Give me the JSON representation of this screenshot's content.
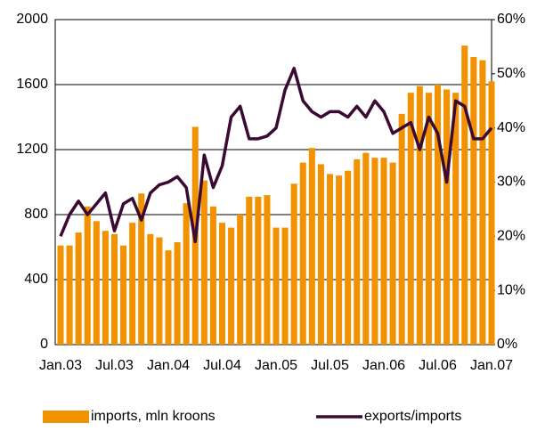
{
  "chart_data": {
    "type": "bar_line",
    "categories": [
      "Jan.03",
      null,
      null,
      null,
      null,
      null,
      "Jul.03",
      null,
      null,
      null,
      null,
      null,
      "Jan.04",
      null,
      null,
      null,
      null,
      null,
      "Jul.04",
      null,
      null,
      null,
      null,
      null,
      "Jan.05",
      null,
      null,
      null,
      null,
      null,
      "Jul.05",
      null,
      null,
      null,
      null,
      null,
      "Jan.06",
      null,
      null,
      null,
      null,
      null,
      "Jul.06",
      null,
      null,
      null,
      null,
      null,
      "Jan.07"
    ],
    "series": [
      {
        "name": "imports, mln kroons",
        "color": "#f39200",
        "kind": "bar",
        "values": [
          610,
          610,
          690,
          850,
          760,
          700,
          680,
          610,
          750,
          930,
          680,
          660,
          580,
          630,
          870,
          1340,
          1010,
          850,
          750,
          720,
          800,
          910,
          910,
          920,
          720,
          720,
          990,
          1120,
          1210,
          1110,
          1050,
          1040,
          1070,
          1140,
          1180,
          1150,
          1150,
          1120,
          1420,
          1550,
          1590,
          1550,
          1600,
          1570,
          1550,
          1840,
          1770,
          1750,
          1620
        ]
      },
      {
        "name": "exports/imports",
        "color": "#3b0a32",
        "kind": "line",
        "axis": "y2",
        "values": [
          20,
          24,
          26.5,
          24,
          26,
          28,
          21,
          26,
          27,
          23,
          28,
          29.5,
          30,
          31,
          29,
          19,
          35,
          29,
          33,
          42,
          44,
          38,
          38,
          38.5,
          40,
          47,
          51,
          45,
          43,
          42,
          43,
          43,
          42,
          44,
          42,
          45,
          43,
          39,
          40,
          41,
          36,
          42,
          39,
          30,
          45,
          44,
          38,
          38,
          40
        ]
      }
    ],
    "ylim": [
      0,
      2000
    ],
    "yticks": [
      0,
      400,
      800,
      1200,
      1600,
      2000
    ],
    "y2lim": [
      0,
      60
    ],
    "y2ticks": [
      {
        "value": 0,
        "label": "0%"
      },
      {
        "value": 10,
        "label": "10%"
      },
      {
        "value": 20,
        "label": "20%"
      },
      {
        "value": 30,
        "label": "30%"
      },
      {
        "value": 40,
        "label": "40%"
      },
      {
        "value": 50,
        "label": "50%"
      },
      {
        "value": 60,
        "label": "60%"
      }
    ],
    "grid": true
  }
}
